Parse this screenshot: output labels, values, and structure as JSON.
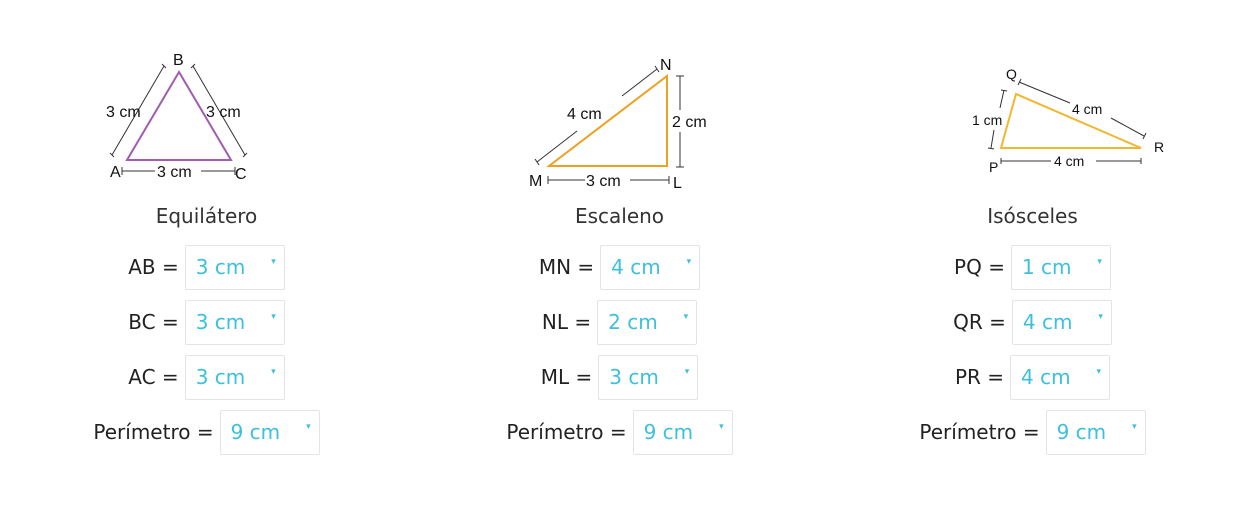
{
  "panels": [
    {
      "title": "Equilátero",
      "stroke_color": "#a05cb0",
      "vertices": [
        "A",
        "B",
        "C"
      ],
      "side_labels": [
        "3 cm",
        "3 cm",
        "3 cm"
      ],
      "rows": [
        {
          "label": "AB =",
          "value": "3 cm"
        },
        {
          "label": "BC =",
          "value": "3 cm"
        },
        {
          "label": "AC =",
          "value": "3 cm"
        },
        {
          "label": "Perímetro =",
          "value": "9 cm"
        }
      ]
    },
    {
      "title": "Escaleno",
      "stroke_color": "#f0a020",
      "vertices": [
        "M",
        "N",
        "L"
      ],
      "side_labels": [
        "4 cm",
        "2 cm",
        "3 cm"
      ],
      "rows": [
        {
          "label": "MN =",
          "value": "4 cm"
        },
        {
          "label": "NL =",
          "value": "2 cm"
        },
        {
          "label": "ML =",
          "value": "3 cm"
        },
        {
          "label": "Perímetro =",
          "value": "9 cm"
        }
      ]
    },
    {
      "title": "Isósceles",
      "stroke_color": "#f0b830",
      "vertices": [
        "P",
        "Q",
        "R"
      ],
      "side_labels": [
        "1 cm",
        "4 cm",
        "4 cm"
      ],
      "rows": [
        {
          "label": "PQ =",
          "value": "1 cm"
        },
        {
          "label": "QR =",
          "value": "4 cm"
        },
        {
          "label": "PR =",
          "value": "4 cm"
        },
        {
          "label": "Perímetro =",
          "value": "9 cm"
        }
      ]
    }
  ],
  "dropdown_caret": "▾"
}
